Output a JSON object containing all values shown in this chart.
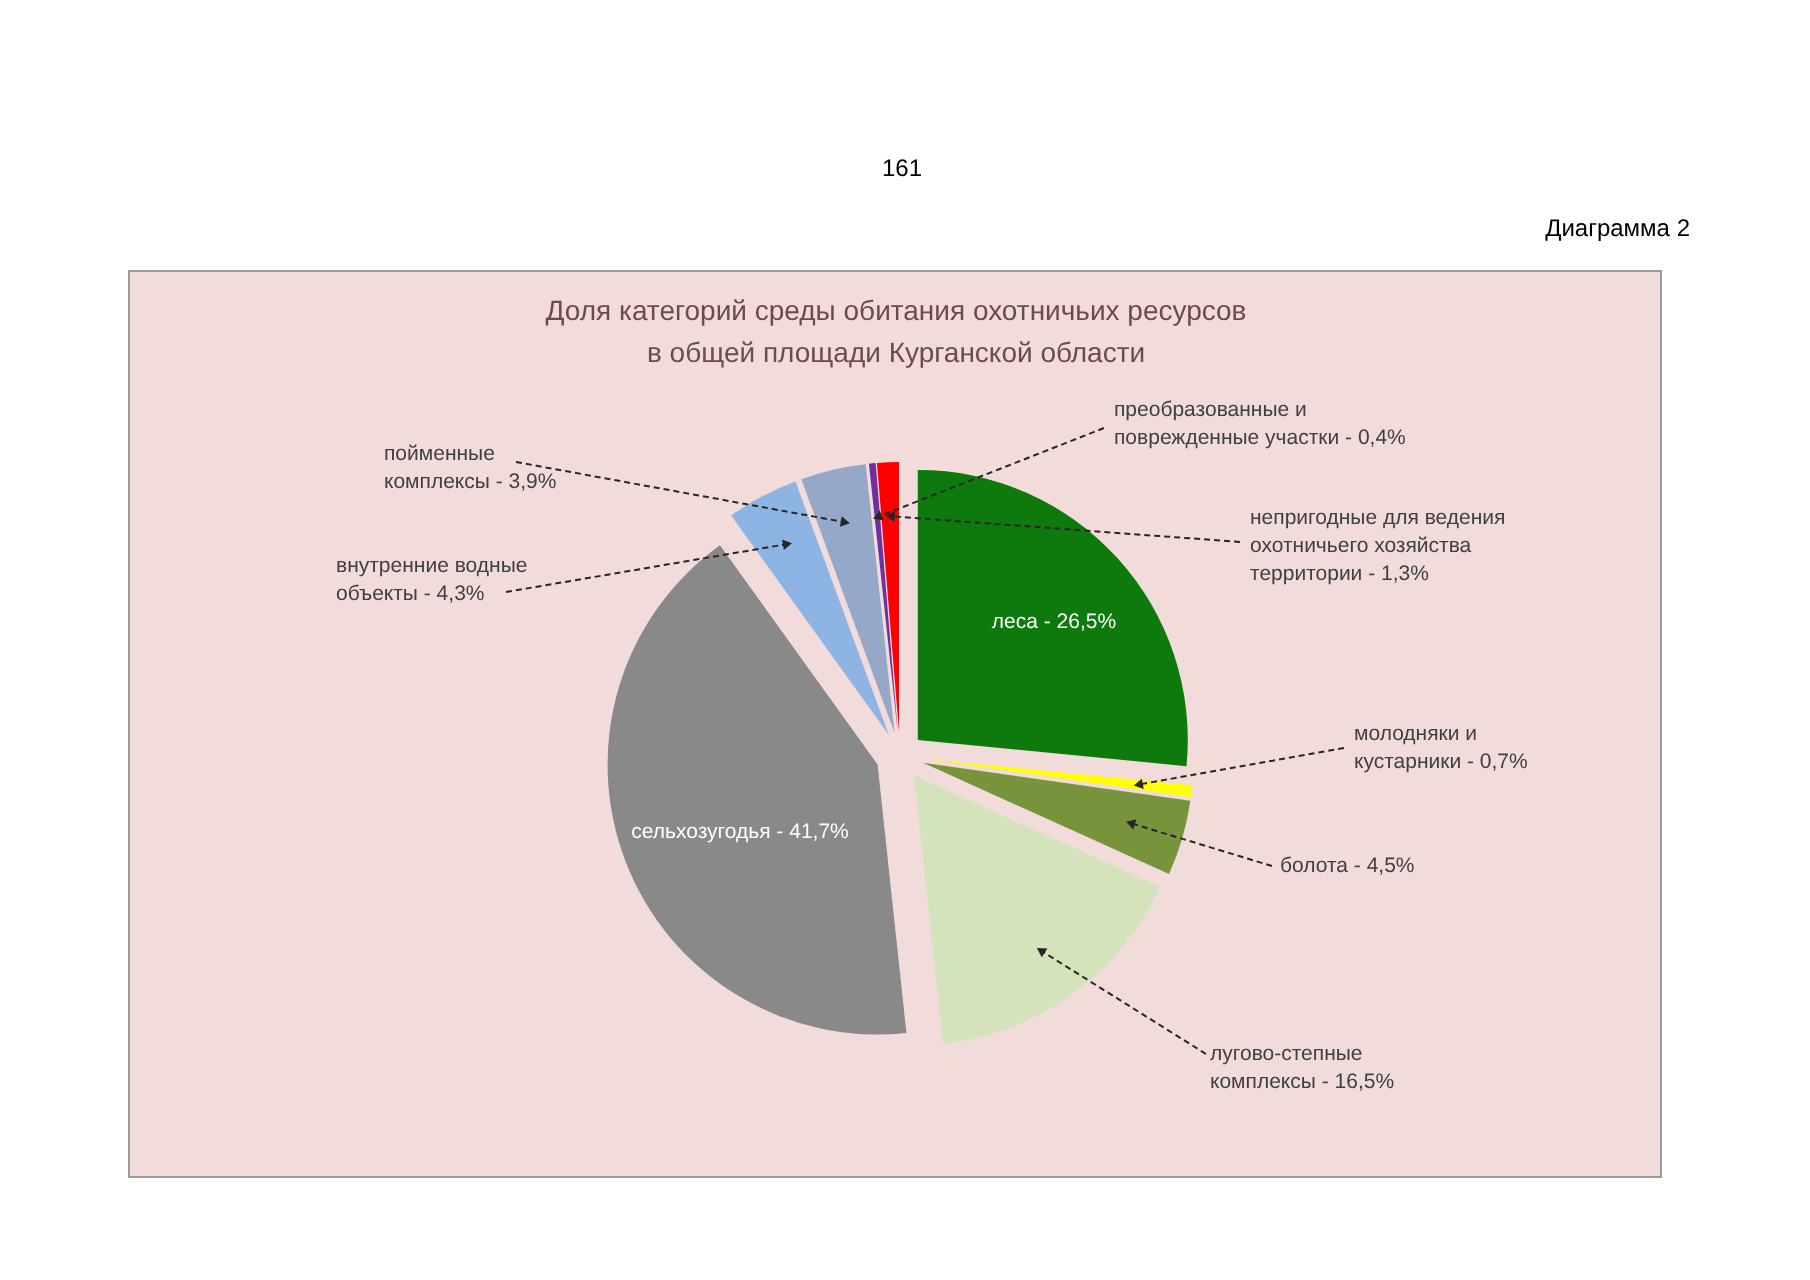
{
  "chart_data": {
    "type": "pie",
    "title": "Доля категорий среды обитания охотничьих ресурсов в общей площади Курганской области",
    "categories": [
      "леса - 26,5%",
      "молодняки и кустарники - 0,7%",
      "болота - 4,5%",
      "лугово-степные комплексы - 16,5%",
      "сельхозугодья - 41,7%",
      "внутренние водные объекты - 4,3%",
      "пойменные комплексы - 3,9%",
      "преобразованные и поврежденные участки - 0,4%",
      "непригодные для ведения охотничьего хозяйства территории - 1,3%"
    ],
    "values": [
      26.5,
      0.7,
      4.5,
      16.5,
      41.7,
      4.3,
      3.9,
      0.4,
      1.3
    ],
    "colors": [
      "#0e7a0d",
      "#ffff00",
      "#77933c",
      "#d4e3bb",
      "#898989",
      "#8eb4e3",
      "#95a8c8",
      "#7030a0",
      "#ff0000"
    ],
    "annotations": [
      "161",
      "Диаграмма 2"
    ]
  }
}
